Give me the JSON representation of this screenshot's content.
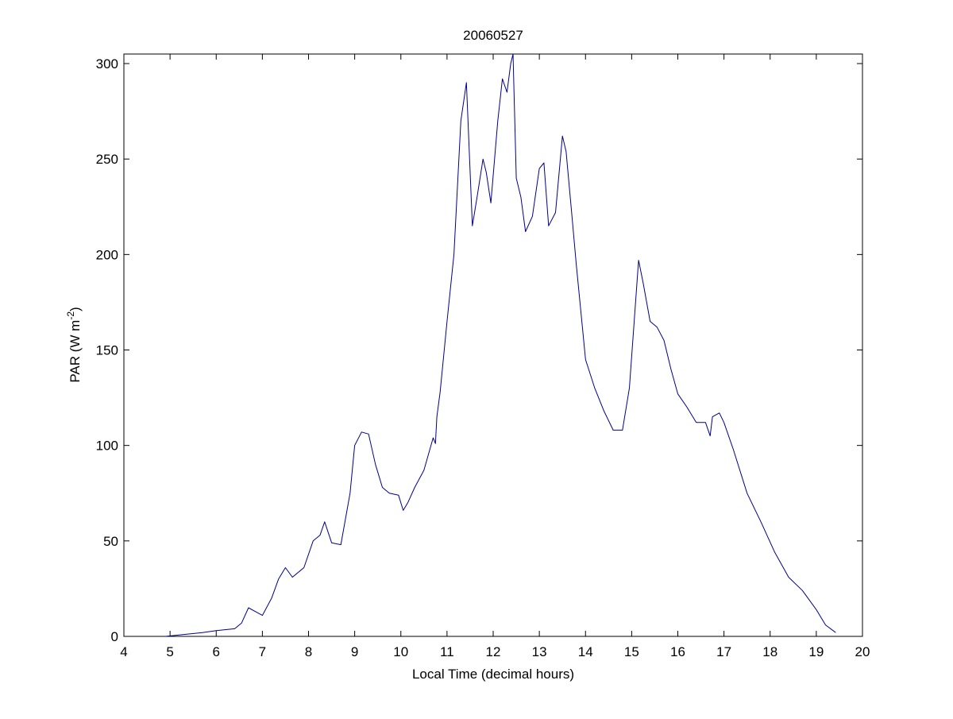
{
  "chart_data": {
    "type": "line",
    "title": "20060527",
    "xlabel": "Local Time (decimal hours)",
    "ylabel": {
      "main": "PAR (W m",
      "superscript": "-2",
      "close": ")"
    },
    "xlim": [
      4,
      20
    ],
    "ylim": [
      0,
      305
    ],
    "xticks": [
      4,
      5,
      6,
      7,
      8,
      9,
      10,
      11,
      12,
      13,
      14,
      15,
      16,
      17,
      18,
      19,
      20
    ],
    "yticks": [
      0,
      50,
      100,
      150,
      200,
      250,
      300
    ],
    "grid": false,
    "line_color": "#00008b",
    "series": [
      {
        "x": [
          4.9,
          5.3,
          5.7,
          6.0,
          6.4,
          6.55,
          6.7,
          6.85,
          7.0,
          7.2,
          7.35,
          7.5,
          7.65,
          7.9,
          8.1,
          8.25,
          8.35,
          8.5,
          8.7,
          8.9,
          9.0,
          9.15,
          9.3,
          9.45,
          9.6,
          9.75,
          9.95,
          10.05,
          10.15,
          10.3,
          10.5,
          10.7,
          10.75,
          10.78,
          10.85,
          11.0,
          11.15,
          11.3,
          11.42,
          11.55,
          11.65,
          11.78,
          11.85,
          11.95,
          12.1,
          12.2,
          12.3,
          12.38,
          12.43,
          12.5,
          12.6,
          12.7,
          12.85,
          13.0,
          13.1,
          13.2,
          13.35,
          13.5,
          13.58,
          13.7,
          13.8,
          14.0,
          14.2,
          14.4,
          14.6,
          14.8,
          14.95,
          15.15,
          15.25,
          15.4,
          15.55,
          15.7,
          15.85,
          16.0,
          16.2,
          16.4,
          16.6,
          16.7,
          16.75,
          16.9,
          17.0,
          17.2,
          17.5,
          17.8,
          18.1,
          18.4,
          18.7,
          19.0,
          19.2,
          19.42
        ],
        "y": [
          0,
          1,
          2,
          3,
          4,
          7,
          15,
          13,
          11,
          20,
          30,
          36,
          31,
          36,
          50,
          53,
          60,
          49,
          48,
          75,
          100,
          107,
          106,
          90,
          78,
          75,
          74,
          66,
          70,
          78,
          87,
          104,
          101,
          115,
          128,
          165,
          200,
          270,
          290,
          215,
          230,
          250,
          243,
          227,
          270,
          292,
          285,
          300,
          305,
          240,
          230,
          212,
          220,
          245,
          248,
          215,
          222,
          262,
          254,
          222,
          195,
          145,
          130,
          118,
          108,
          108,
          130,
          197,
          185,
          165,
          162,
          155,
          140,
          127,
          120,
          112,
          112,
          105,
          115,
          117,
          112,
          98,
          75,
          60,
          44,
          31,
          24,
          14,
          6,
          2
        ]
      }
    ]
  }
}
